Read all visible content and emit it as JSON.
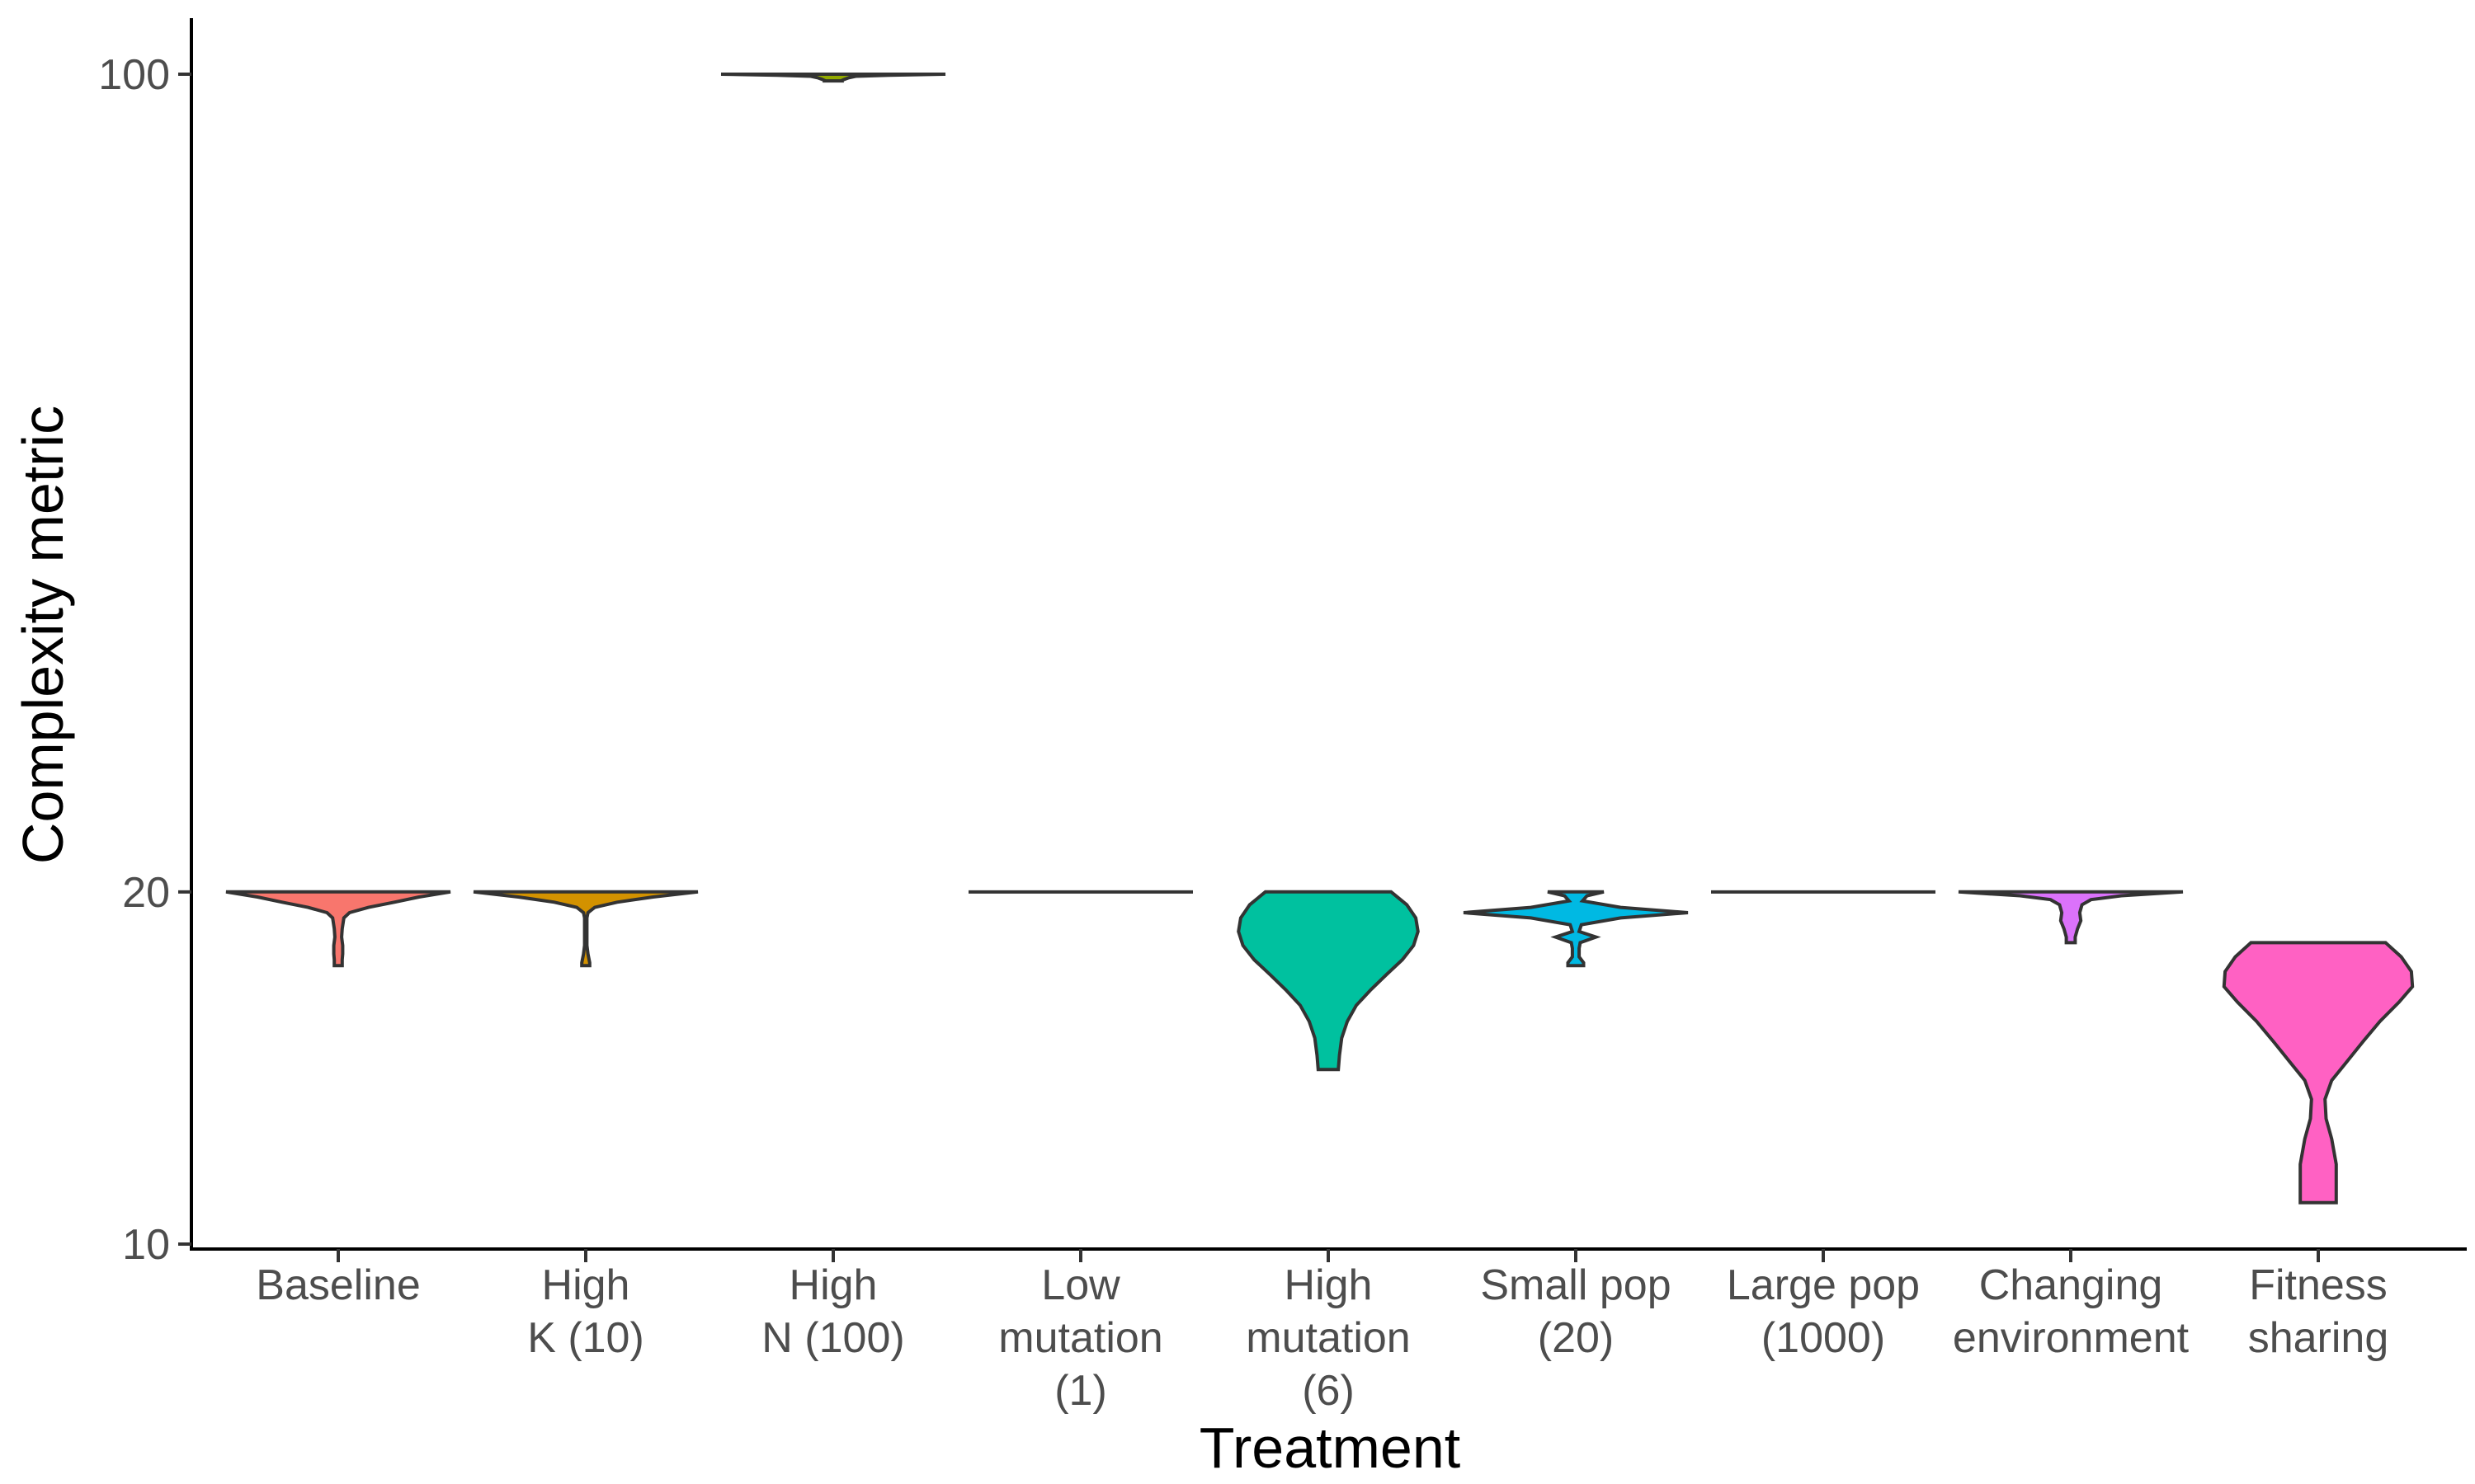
{
  "chart_data": {
    "type": "violin",
    "xlabel": "Treatment",
    "ylabel": "Complexity metric",
    "y_scale": "log10",
    "ylim": [
      10,
      100
    ],
    "y_ticks": [
      {
        "value": 10,
        "label": "10"
      },
      {
        "value": 20,
        "label": "20"
      },
      {
        "value": 100,
        "label": "100"
      }
    ],
    "grid": false,
    "legend": "none",
    "categories": [
      {
        "lines": [
          "Baseline"
        ],
        "color": "#F8766D",
        "min": 17.3,
        "max": 20,
        "profile": [
          [
            20,
            1
          ],
          [
            19.8,
            0.72
          ],
          [
            19.6,
            0.5
          ],
          [
            19.4,
            0.27
          ],
          [
            19.2,
            0.1
          ],
          [
            19,
            0.05
          ],
          [
            18.6,
            0.035
          ],
          [
            18.3,
            0.03
          ],
          [
            18,
            0.04
          ],
          [
            17.7,
            0.04
          ],
          [
            17.5,
            0.035
          ],
          [
            17.3,
            0.035
          ]
        ]
      },
      {
        "lines": [
          "High",
          "K (10)"
        ],
        "color": "#D39200",
        "min": 17.3,
        "max": 20,
        "profile": [
          [
            20,
            1
          ],
          [
            19.8,
            0.6
          ],
          [
            19.6,
            0.28
          ],
          [
            19.4,
            0.08
          ],
          [
            19.2,
            0.02
          ],
          [
            19,
            0.01
          ],
          [
            18.5,
            0.01
          ],
          [
            18,
            0.01
          ],
          [
            17.7,
            0.02
          ],
          [
            17.4,
            0.035
          ],
          [
            17.3,
            0.035
          ]
        ]
      },
      {
        "lines": [
          "High",
          "N (100)"
        ],
        "color": "#93AA00",
        "min": 98.7,
        "max": 100,
        "profile": [
          [
            100,
            1
          ],
          [
            99.8,
            0.5
          ],
          [
            99.6,
            0.2
          ],
          [
            99.3,
            0.14
          ],
          [
            99,
            0.1
          ],
          [
            98.8,
            0.08
          ],
          [
            98.7,
            0.08
          ]
        ]
      },
      {
        "lines": [
          "Low",
          "mutation",
          "(1)"
        ],
        "color": "#00BA38",
        "min": 20,
        "max": 20,
        "profile": [
          [
            20,
            1
          ]
        ]
      },
      {
        "lines": [
          "High",
          "mutation",
          "(6)"
        ],
        "color": "#00C19F",
        "min": 14.1,
        "max": 20,
        "profile": [
          [
            20,
            0.56
          ],
          [
            19.5,
            0.7
          ],
          [
            19,
            0.78
          ],
          [
            18.5,
            0.8
          ],
          [
            18,
            0.76
          ],
          [
            17.5,
            0.66
          ],
          [
            17,
            0.52
          ],
          [
            16.5,
            0.38
          ],
          [
            16,
            0.25
          ],
          [
            15.5,
            0.17
          ],
          [
            15,
            0.12
          ],
          [
            14.5,
            0.1
          ],
          [
            14.1,
            0.09
          ]
        ]
      },
      {
        "lines": [
          "Small pop",
          "(20)"
        ],
        "color": "#00B9E3",
        "min": 17.3,
        "max": 20,
        "profile": [
          [
            20,
            0.25
          ],
          [
            19.85,
            0.1
          ],
          [
            19.65,
            0.06
          ],
          [
            19.4,
            0.4
          ],
          [
            19.2,
            1
          ],
          [
            19,
            0.4
          ],
          [
            18.75,
            0.05
          ],
          [
            18.5,
            0.03
          ],
          [
            18.3,
            0.18
          ],
          [
            18.1,
            0.04
          ],
          [
            17.9,
            0.03
          ],
          [
            17.6,
            0.03
          ],
          [
            17.4,
            0.07
          ],
          [
            17.3,
            0.07
          ]
        ]
      },
      {
        "lines": [
          "Large pop",
          "(1000)"
        ],
        "color": "#619CFF",
        "min": 20,
        "max": 20,
        "profile": [
          [
            20,
            1
          ]
        ]
      },
      {
        "lines": [
          "Changing",
          "environment"
        ],
        "color": "#DB72FB",
        "min": 18.1,
        "max": 20,
        "profile": [
          [
            20,
            1
          ],
          [
            19.85,
            0.45
          ],
          [
            19.7,
            0.18
          ],
          [
            19.5,
            0.1
          ],
          [
            19.2,
            0.08
          ],
          [
            18.9,
            0.09
          ],
          [
            18.6,
            0.06
          ],
          [
            18.3,
            0.04
          ],
          [
            18.1,
            0.04
          ]
        ]
      },
      {
        "lines": [
          "Fitness",
          "sharing"
        ],
        "color": "#FF61C3",
        "min": 10.85,
        "max": 18.1,
        "profile": [
          [
            18.1,
            0.6
          ],
          [
            17.6,
            0.74
          ],
          [
            17.1,
            0.83
          ],
          [
            16.6,
            0.84
          ],
          [
            16.1,
            0.72
          ],
          [
            15.5,
            0.55
          ],
          [
            14.9,
            0.4
          ],
          [
            14.3,
            0.25
          ],
          [
            13.8,
            0.12
          ],
          [
            13.3,
            0.06
          ],
          [
            12.8,
            0.07
          ],
          [
            12.3,
            0.12
          ],
          [
            11.7,
            0.16
          ],
          [
            11.2,
            0.16
          ],
          [
            10.85,
            0.16
          ]
        ]
      }
    ]
  }
}
